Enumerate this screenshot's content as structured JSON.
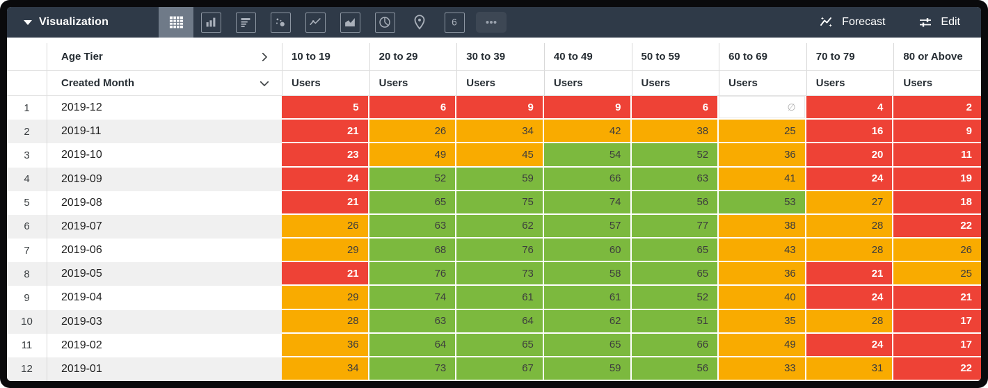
{
  "toolbar": {
    "title": "Visualization",
    "tabs": [
      {
        "icon": "table-icon",
        "selected": true
      },
      {
        "icon": "bar-chart-icon",
        "selected": false
      },
      {
        "icon": "row-chart-icon",
        "selected": false
      },
      {
        "icon": "scatter-icon",
        "selected": false
      },
      {
        "icon": "line-chart-icon",
        "selected": false
      },
      {
        "icon": "area-chart-icon",
        "selected": false
      },
      {
        "icon": "pie-chart-icon",
        "selected": false
      },
      {
        "icon": "map-pin-icon",
        "selected": false
      },
      {
        "icon": "single-value-icon",
        "selected": false
      }
    ],
    "single_value_glyph": "6",
    "more_label": "more-icon",
    "forecast_label": "Forecast",
    "edit_label": "Edit"
  },
  "header": {
    "pivot_dimension": "Age Tier",
    "row_dimension": "Created Month",
    "tiers": [
      "10 to 19",
      "20 to 29",
      "30 to 39",
      "40 to 49",
      "50 to 59",
      "60 to 69",
      "70 to 79",
      "80 or Above"
    ],
    "measure_label": "Users"
  },
  "colors": {
    "red": "#ee4236",
    "orange": "#f9ab00",
    "green": "#7cb93e",
    "toolbar_bg": "#2f3a48",
    "selected_tab_bg": "#6f7a88",
    "stripe": "#f0f0f0"
  },
  "null_symbol": "∅",
  "table": {
    "rows": [
      {
        "num": "1",
        "month": "2019-12",
        "values": [
          "5",
          "6",
          "9",
          "9",
          "6",
          "∅",
          "4",
          "2"
        ],
        "cell_colors": [
          "red",
          "red",
          "red",
          "red",
          "red",
          "empty",
          "red",
          "red"
        ]
      },
      {
        "num": "2",
        "month": "2019-11",
        "values": [
          "21",
          "26",
          "34",
          "42",
          "38",
          "25",
          "16",
          "9"
        ],
        "cell_colors": [
          "red",
          "orange",
          "orange",
          "orange",
          "orange",
          "orange",
          "red",
          "red"
        ]
      },
      {
        "num": "3",
        "month": "2019-10",
        "values": [
          "23",
          "49",
          "45",
          "54",
          "52",
          "36",
          "20",
          "11"
        ],
        "cell_colors": [
          "red",
          "orange",
          "orange",
          "green",
          "green",
          "orange",
          "red",
          "red"
        ]
      },
      {
        "num": "4",
        "month": "2019-09",
        "values": [
          "24",
          "52",
          "59",
          "66",
          "63",
          "41",
          "24",
          "19"
        ],
        "cell_colors": [
          "red",
          "green",
          "green",
          "green",
          "green",
          "orange",
          "red",
          "red"
        ]
      },
      {
        "num": "5",
        "month": "2019-08",
        "values": [
          "21",
          "65",
          "75",
          "74",
          "56",
          "53",
          "27",
          "18"
        ],
        "cell_colors": [
          "red",
          "green",
          "green",
          "green",
          "green",
          "green",
          "orange",
          "red"
        ]
      },
      {
        "num": "6",
        "month": "2019-07",
        "values": [
          "26",
          "63",
          "62",
          "57",
          "77",
          "38",
          "28",
          "22"
        ],
        "cell_colors": [
          "orange",
          "green",
          "green",
          "green",
          "green",
          "orange",
          "orange",
          "red"
        ]
      },
      {
        "num": "7",
        "month": "2019-06",
        "values": [
          "29",
          "68",
          "76",
          "60",
          "65",
          "43",
          "28",
          "26"
        ],
        "cell_colors": [
          "orange",
          "green",
          "green",
          "green",
          "green",
          "orange",
          "orange",
          "orange"
        ]
      },
      {
        "num": "8",
        "month": "2019-05",
        "values": [
          "21",
          "76",
          "73",
          "58",
          "65",
          "36",
          "21",
          "25"
        ],
        "cell_colors": [
          "red",
          "green",
          "green",
          "green",
          "green",
          "orange",
          "red",
          "orange"
        ]
      },
      {
        "num": "9",
        "month": "2019-04",
        "values": [
          "29",
          "74",
          "61",
          "61",
          "52",
          "40",
          "24",
          "21"
        ],
        "cell_colors": [
          "orange",
          "green",
          "green",
          "green",
          "green",
          "orange",
          "red",
          "red"
        ]
      },
      {
        "num": "10",
        "month": "2019-03",
        "values": [
          "28",
          "63",
          "64",
          "62",
          "51",
          "35",
          "28",
          "17"
        ],
        "cell_colors": [
          "orange",
          "green",
          "green",
          "green",
          "green",
          "orange",
          "orange",
          "red"
        ]
      },
      {
        "num": "11",
        "month": "2019-02",
        "values": [
          "36",
          "64",
          "65",
          "65",
          "66",
          "49",
          "24",
          "17"
        ],
        "cell_colors": [
          "orange",
          "green",
          "green",
          "green",
          "green",
          "orange",
          "red",
          "red"
        ]
      },
      {
        "num": "12",
        "month": "2019-01",
        "values": [
          "34",
          "73",
          "67",
          "59",
          "56",
          "33",
          "31",
          "22"
        ],
        "cell_colors": [
          "orange",
          "green",
          "green",
          "green",
          "green",
          "orange",
          "orange",
          "red"
        ]
      }
    ]
  }
}
